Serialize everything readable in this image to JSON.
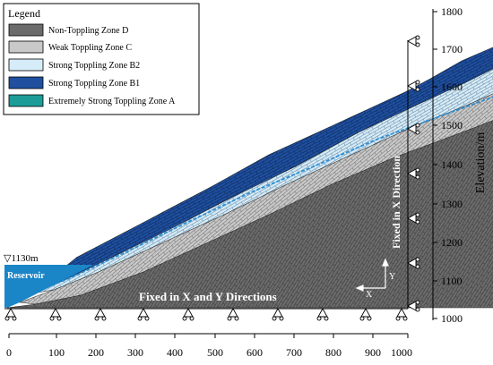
{
  "legend": {
    "title": "Legend",
    "items": [
      {
        "label": "Non-Toppling Zone D",
        "color": "#6b6b6b"
      },
      {
        "label": "Weak Toppling Zone C",
        "color": "#c9c9c9"
      },
      {
        "label": "Strong Toppling Zone B2",
        "color": "#d6ecf8"
      },
      {
        "label": "Strong Toppling Zone B1",
        "color": "#1f4f9e"
      },
      {
        "label": "Extremely Strong Toppling Zone A",
        "color": "#1c9c97"
      }
    ]
  },
  "reservoir": {
    "label": "Reservoir",
    "level_label": "▽1130m",
    "color": "#1a86c8"
  },
  "annotations": {
    "bottom_boundary": "Fixed in X and Y Directions",
    "right_boundary": "Fixed in X Direction",
    "axis_x": "X",
    "axis_y": "Y"
  },
  "y_axis": {
    "label": "Elevation/m",
    "ticks": [
      "1000",
      "1100",
      "1200",
      "1300",
      "1400",
      "1500",
      "1600",
      "1700",
      "1800"
    ]
  },
  "x_axis": {
    "ticks": [
      "0",
      "100",
      "200",
      "300",
      "400",
      "500",
      "600",
      "700",
      "800",
      "900",
      "1000"
    ]
  },
  "colors": {
    "water_line": "#2b8fd6",
    "frame": "#000000"
  }
}
